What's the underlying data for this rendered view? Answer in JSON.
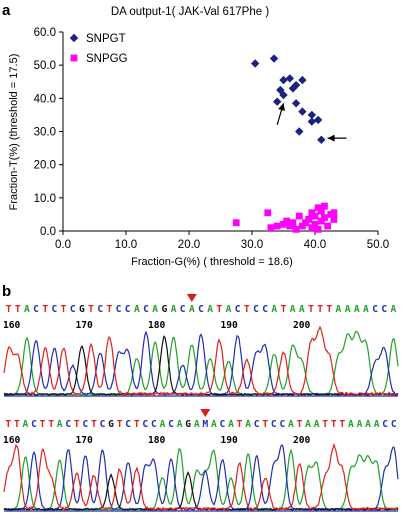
{
  "panels": {
    "a": "a",
    "b": "b"
  },
  "chart_data": {
    "type": "scatter",
    "title": "DA output-1( JAK-Val 617Phe  )",
    "xlabel": "Fraction-G(%) ( threshold = 18.6)",
    "ylabel": "Fraction-T(%) (threshold = 17.5)",
    "xlim": [
      0,
      50
    ],
    "ylim": [
      0,
      60
    ],
    "xticks": [
      "0.0",
      "10.0",
      "20.0",
      "30.0",
      "40.0",
      "50.0"
    ],
    "yticks": [
      "0.0",
      "10.0",
      "20.0",
      "30.0",
      "40.0",
      "50.0",
      "60.0"
    ],
    "grid": false,
    "legend_position": "top-left",
    "series": [
      {
        "name": "SNPGT",
        "color": "#1a237e",
        "marker": "diamond",
        "points": [
          [
            30.5,
            50.5
          ],
          [
            33.5,
            52
          ],
          [
            35,
            45.5
          ],
          [
            36,
            46
          ],
          [
            37,
            44
          ],
          [
            38,
            45.5
          ],
          [
            34,
            39
          ],
          [
            35,
            41
          ],
          [
            34.5,
            42.5
          ],
          [
            36.5,
            43
          ],
          [
            37,
            38.5
          ],
          [
            38,
            36
          ],
          [
            39.5,
            35
          ],
          [
            40.5,
            33.5
          ],
          [
            39.5,
            33
          ],
          [
            37.5,
            30
          ],
          [
            41,
            27.5
          ]
        ]
      },
      {
        "name": "SNPGG",
        "color": "#ff00ff",
        "marker": "square",
        "points": [
          [
            27.5,
            2.5
          ],
          [
            32.5,
            5.5
          ],
          [
            33,
            1
          ],
          [
            34,
            1.5
          ],
          [
            35,
            2
          ],
          [
            35.5,
            3
          ],
          [
            36,
            1.5
          ],
          [
            36.5,
            2.5
          ],
          [
            37,
            0.5
          ],
          [
            37.5,
            4.5
          ],
          [
            38,
            1.5
          ],
          [
            38.5,
            2.5
          ],
          [
            39,
            3.5
          ],
          [
            39.5,
            1
          ],
          [
            39.5,
            5.5
          ],
          [
            40,
            4.5
          ],
          [
            40,
            2
          ],
          [
            40.5,
            7
          ],
          [
            41,
            6
          ],
          [
            41,
            3
          ],
          [
            41.5,
            4
          ],
          [
            42,
            1.5
          ],
          [
            42.5,
            5
          ],
          [
            43,
            3.5
          ],
          [
            41.5,
            7.5
          ],
          [
            43,
            5.5
          ],
          [
            40.5,
            0.5
          ]
        ]
      }
    ],
    "annotations": [
      {
        "type": "arrow",
        "tail": [
          34,
          32
        ],
        "head": [
          35,
          38.5
        ]
      },
      {
        "type": "arrow",
        "tail": [
          45,
          28
        ],
        "head": [
          42,
          28
        ]
      }
    ]
  },
  "trace1": {
    "sequence": "TTACTCTCGTCTCCACAGACACATACTCCATAATTTAAAACCA",
    "ticks": [
      "160",
      "170",
      "180",
      "190",
      "200"
    ],
    "marker_base_index": 20
  },
  "trace2": {
    "sequence": "TTACTTACTCTCGTCTCCACAGAMACATACTCCATAATTTAAAACC",
    "ticks": [
      "160",
      "170",
      "180",
      "190",
      "200"
    ],
    "marker_base_index": 23
  },
  "base_colors": {
    "A": "#22a02a",
    "C": "#1f2fb0",
    "G": "#111111",
    "T": "#e0201a",
    "M": "#1f2fb0"
  }
}
